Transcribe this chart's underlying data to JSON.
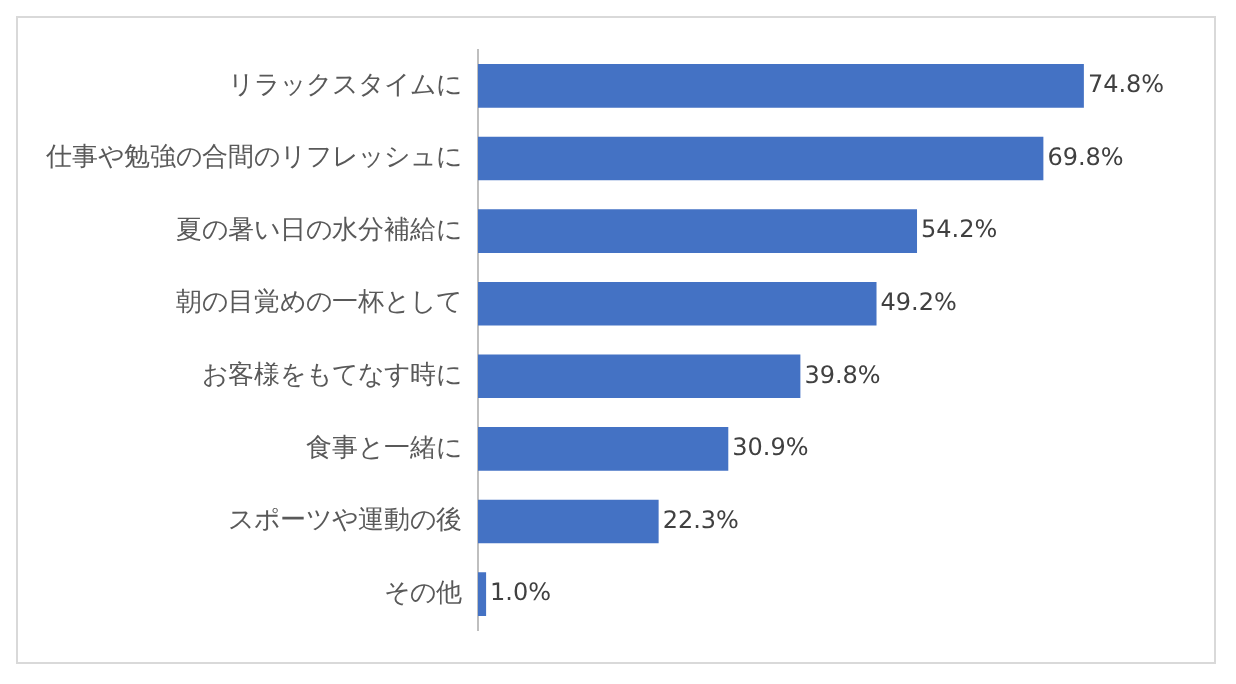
{
  "chart_data": {
    "type": "bar",
    "orientation": "horizontal",
    "categories": [
      "リラックスタイムに",
      "仕事や勉強の合間のリフレッシュに",
      "夏の暑い日の水分補給に",
      "朝の目覚めの一杯として",
      "お客様をもてなす時に",
      "食事と一緒に",
      "スポーツや運動の後",
      "その他"
    ],
    "values": [
      74.8,
      69.8,
      54.2,
      49.2,
      39.8,
      30.9,
      22.3,
      1.0
    ],
    "value_labels": [
      "74.8%",
      "69.8%",
      "54.2%",
      "49.2%",
      "39.8%",
      "30.9%",
      "22.3%",
      "1.0%"
    ],
    "color": "#4472c4"
  }
}
